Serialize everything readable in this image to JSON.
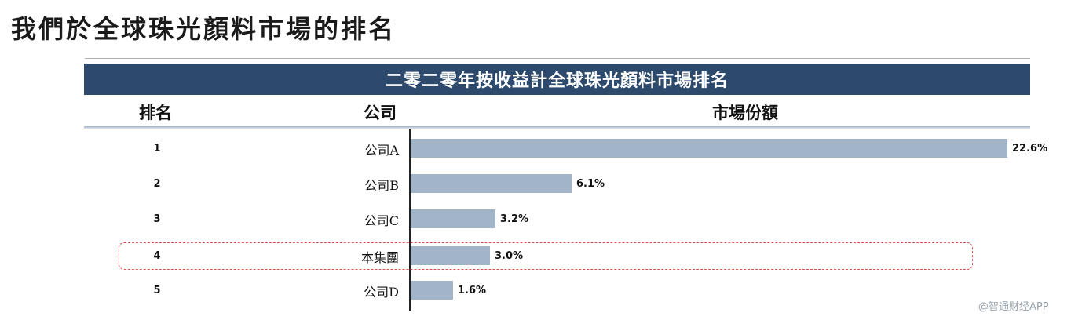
{
  "page": {
    "title": "我們於全球珠光顏料市場的排名"
  },
  "chart_data": {
    "type": "bar",
    "orientation": "horizontal",
    "title": "二零二零年按收益計全球珠光顏料市場排名",
    "columns": [
      "排名",
      "公司",
      "市場份額"
    ],
    "ranks": [
      "1",
      "2",
      "3",
      "4",
      "5"
    ],
    "categories": [
      "公司A",
      "公司B",
      "公司C",
      "本集團",
      "公司D"
    ],
    "values": [
      22.6,
      6.1,
      3.2,
      3.0,
      1.6
    ],
    "value_labels": [
      "22.6%",
      "6.1%",
      "3.2%",
      "3.0%",
      "1.6%"
    ],
    "unit": "%",
    "highlighted_category": "本集團",
    "colors": {
      "bar": "#a2b4c8",
      "banner": "#2d4a6d",
      "highlight_border": "#d9534f"
    }
  },
  "watermark": "@智通财经APP"
}
